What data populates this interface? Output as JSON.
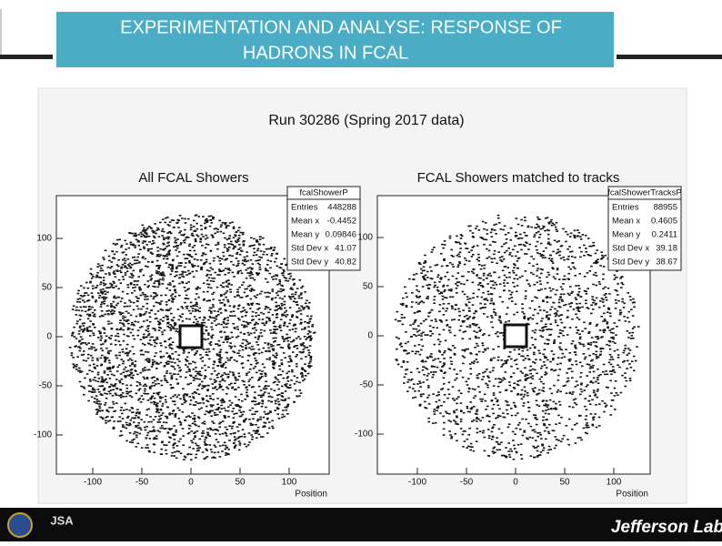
{
  "header": {
    "title_lines": [
      "EXPERIMENTATION AND ANALYSE: RESPONSE OF",
      "HADRONS IN FCAL"
    ]
  },
  "figure": {
    "title": "Run 30286 (Spring 2017 data)",
    "panels": [
      {
        "title": "All FCAL Showers",
        "stats_name": "fcalShowerP",
        "stats_labels": [
          "Entries",
          "Mean x",
          "Mean y",
          "Std Dev x",
          "Std Dev y"
        ],
        "stats_values": [
          448288,
          -0.4452,
          0.09846,
          41.07,
          40.82
        ],
        "xticks": [
          -100,
          -50,
          0,
          50,
          100
        ],
        "yticks": [
          100,
          50,
          0,
          -50,
          -100
        ],
        "xlabel": "Position"
      },
      {
        "title": "FCAL Showers matched to tracks",
        "stats_name": "fcalShowerTracksP",
        "stats_labels": [
          "Entries",
          "Mean x",
          "Mean y",
          "Std Dev x",
          "Std Dev y"
        ],
        "stats_values": [
          88955,
          0.4605,
          0.2411,
          39.18,
          38.67
        ],
        "xticks": [
          -100,
          -50,
          0,
          50,
          100
        ],
        "yticks": [
          100,
          50,
          0,
          -50,
          -100
        ],
        "xlabel": "Position"
      }
    ]
  },
  "footer": {
    "left_logo": "JSA",
    "right_logo": "Jefferson Lab"
  }
}
